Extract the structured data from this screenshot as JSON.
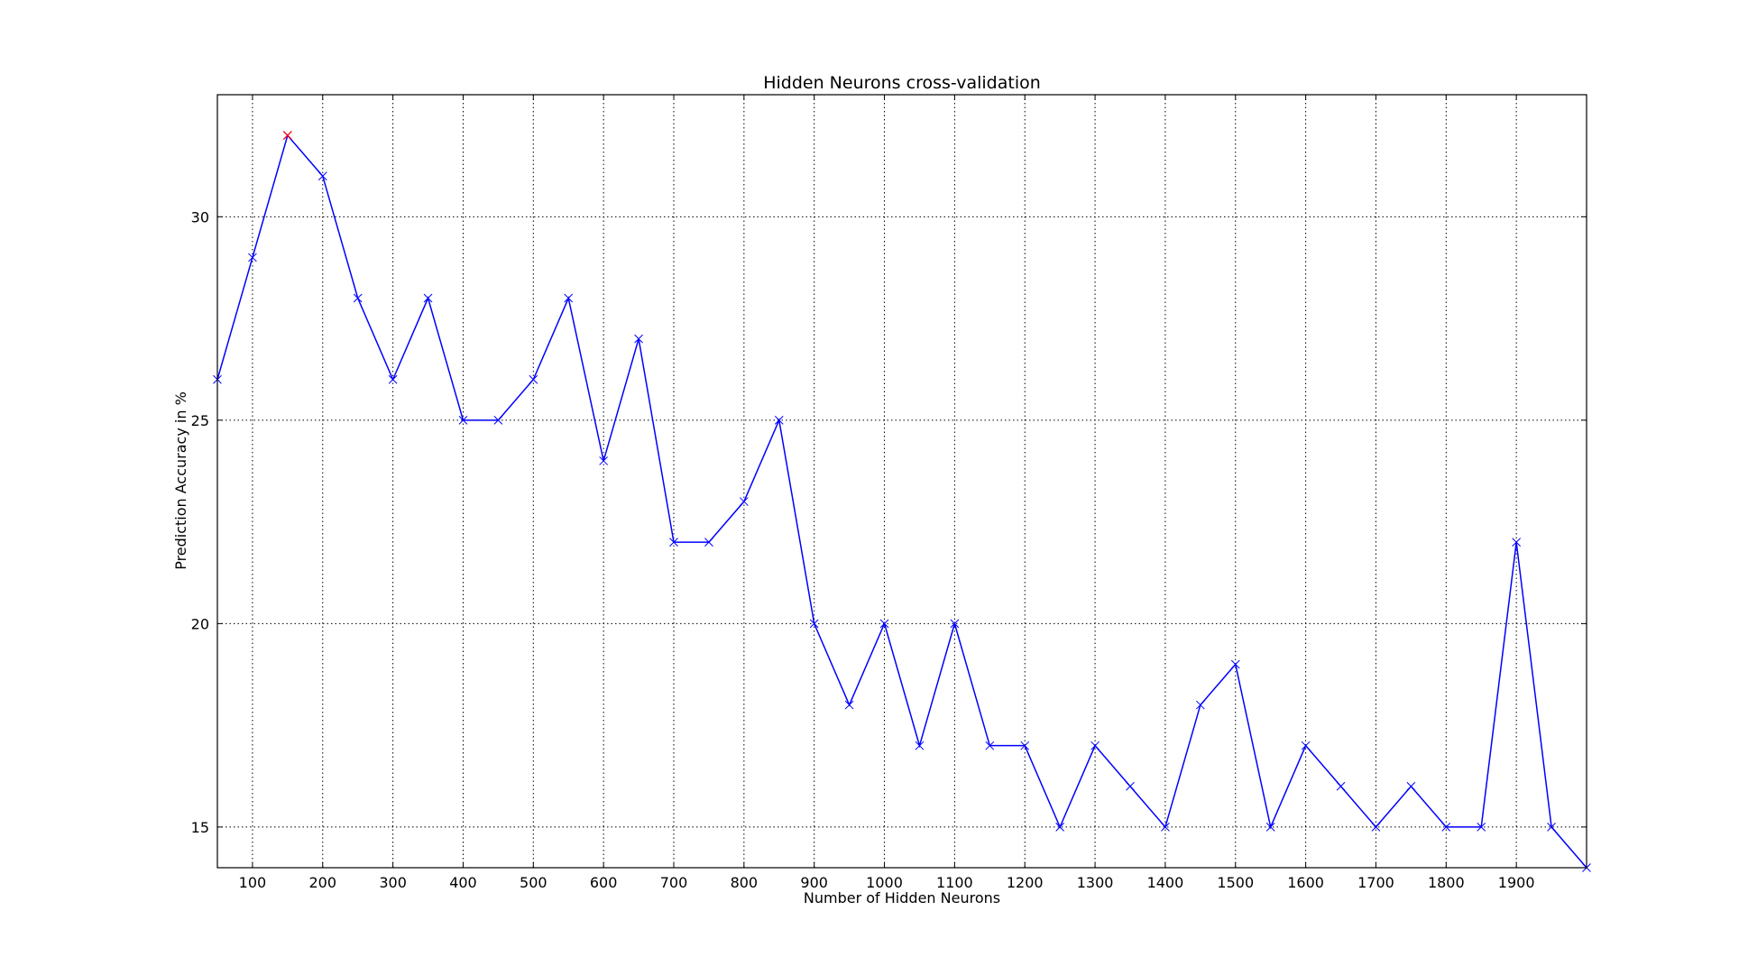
{
  "chart_data": {
    "type": "line",
    "title": "Hidden Neurons cross-validation",
    "xlabel": "Number of Hidden Neurons",
    "ylabel": "Prediction Accuracy in %",
    "xlim": [
      50,
      2000
    ],
    "ylim": [
      14,
      33
    ],
    "grid": true,
    "x_ticks": [
      100,
      200,
      300,
      400,
      500,
      600,
      700,
      800,
      900,
      1000,
      1100,
      1200,
      1300,
      1400,
      1500,
      1600,
      1700,
      1800,
      1900
    ],
    "x_tick_labels": [
      "100",
      "200",
      "300",
      "400",
      "500",
      "600",
      "700",
      "800",
      "900",
      "1000",
      "1100",
      "1200",
      "1300",
      "1400",
      "1500",
      "1600",
      "1700",
      "1800",
      "1900"
    ],
    "y_ticks": [
      15,
      20,
      25,
      30
    ],
    "y_tick_labels": [
      "15",
      "20",
      "25",
      "30"
    ],
    "series": [
      {
        "color": "#0000ff",
        "marker": "x",
        "x": [
          50,
          100,
          150,
          200,
          250,
          300,
          350,
          400,
          450,
          500,
          550,
          600,
          650,
          700,
          750,
          800,
          850,
          900,
          950,
          1000,
          1050,
          1100,
          1150,
          1200,
          1250,
          1300,
          1350,
          1400,
          1450,
          1500,
          1550,
          1600,
          1650,
          1700,
          1750,
          1800,
          1850,
          1900,
          1950,
          2000
        ],
        "values": [
          26,
          29,
          32,
          31,
          28,
          26,
          28,
          25,
          25,
          26,
          28,
          24,
          27,
          22,
          22,
          23,
          25,
          20,
          18,
          20,
          17,
          20,
          17,
          17,
          15,
          17,
          16,
          15,
          18,
          19,
          15,
          17,
          16,
          15,
          16,
          15,
          15,
          22,
          15,
          14
        ]
      }
    ],
    "highlight": {
      "x": 150,
      "value": 32,
      "color": "#ff0000",
      "marker": "x"
    }
  }
}
